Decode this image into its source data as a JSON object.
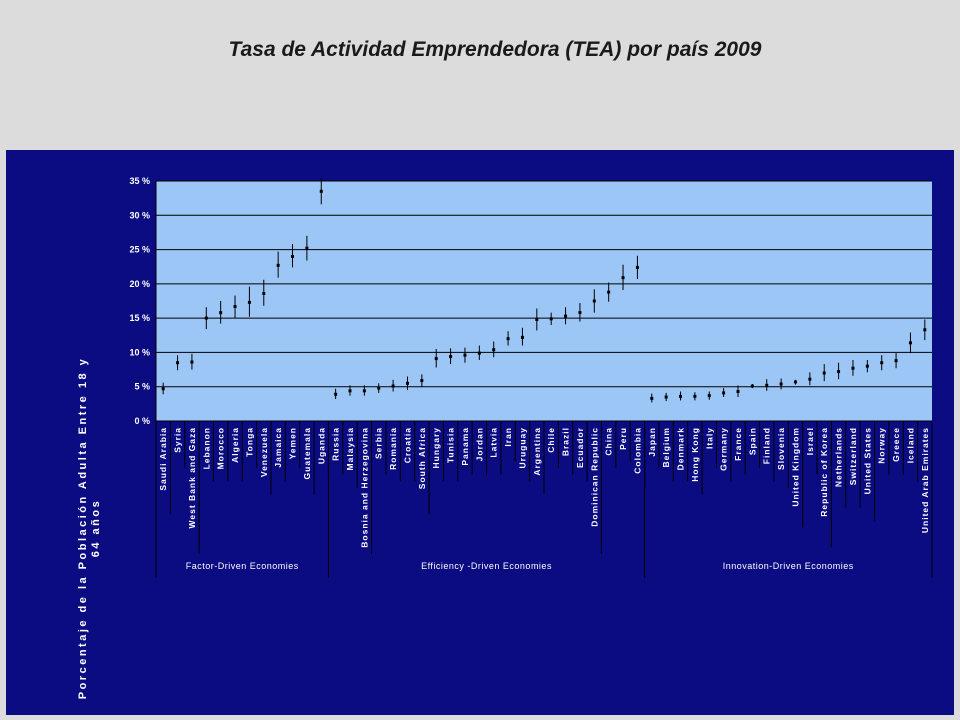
{
  "title": "Tasa de Actividad Emprendedora (TEA) por país 2009",
  "chart_data": {
    "type": "scatter",
    "ylabel": "Porcentaje de la Población Adulta Entre 18 y 64 años",
    "ylim": [
      0,
      35
    ],
    "yticks": [
      "35 %",
      "30 %",
      "25 %",
      "20 %",
      "15 %",
      "10 %",
      "5 %",
      "0 %"
    ],
    "grid": true,
    "colors": {
      "plot_bg": "#9cc6f6",
      "frame_bg": "#0b0b82",
      "gridline": "#000000",
      "marker": "#000000"
    },
    "categories": [
      "Saudi Arabia",
      "Syria",
      "West Bank and Gaza",
      "Lebanon",
      "Morocco",
      "Algeria",
      "Tonga",
      "Venezuela",
      "Jamaica",
      "Yemen",
      "Guatemala",
      "Uganda",
      "Russia",
      "Malaysia",
      "Bosnia and Herzegovina",
      "Serbia",
      "Romania",
      "Croatia",
      "South Africa",
      "Hungary",
      "Tunisia",
      "Panama",
      "Jordan",
      "Latvia",
      "Iran",
      "Uruguay",
      "Argentina",
      "Chile",
      "Brazil",
      "Ecuador",
      "Dominican Republic",
      "China",
      "Peru",
      "Colombia",
      "Japan",
      "Belgium",
      "Denmark",
      "Hong Kong",
      "Italy",
      "Germany",
      "France",
      "Spain",
      "Finland",
      "Slovenia",
      "United Kingdom",
      "Israel",
      "Republic of Korea",
      "Netherlands",
      "Switzerland",
      "United States",
      "Norway",
      "Greece",
      "Iceland",
      "United Arab Emirates"
    ],
    "values": [
      4.7,
      8.5,
      8.6,
      15.0,
      15.8,
      16.7,
      17.3,
      18.6,
      22.7,
      24.0,
      25.2,
      33.5,
      3.9,
      4.4,
      4.4,
      4.8,
      5.1,
      5.5,
      5.9,
      9.1,
      9.4,
      9.6,
      9.9,
      10.4,
      12.0,
      12.2,
      14.8,
      14.9,
      15.3,
      15.8,
      17.5,
      18.8,
      20.9,
      22.4,
      3.3,
      3.5,
      3.6,
      3.6,
      3.7,
      4.1,
      4.3,
      5.1,
      5.2,
      5.4,
      5.7,
      6.1,
      7.0,
      7.2,
      7.7,
      8.0,
      8.5,
      8.8,
      11.4,
      13.3
    ],
    "lows": [
      3.9,
      7.4,
      7.5,
      13.4,
      14.2,
      15.0,
      15.2,
      16.8,
      20.9,
      22.4,
      23.4,
      31.6,
      3.2,
      3.7,
      3.7,
      4.1,
      4.3,
      4.5,
      5.0,
      7.8,
      8.3,
      8.5,
      8.9,
      9.3,
      11.0,
      11.0,
      13.2,
      14.0,
      14.1,
      14.5,
      15.8,
      17.4,
      19.1,
      20.7,
      2.7,
      2.9,
      3.0,
      3.0,
      3.1,
      3.5,
      3.5,
      4.8,
      4.4,
      4.6,
      5.3,
      5.2,
      5.8,
      6.1,
      6.6,
      7.1,
      7.4,
      7.7,
      9.9,
      11.8
    ],
    "highs": [
      5.6,
      9.6,
      9.8,
      16.6,
      17.5,
      18.3,
      19.6,
      20.6,
      24.7,
      25.8,
      27.0,
      35.4,
      4.7,
      5.2,
      5.2,
      5.5,
      6.0,
      6.5,
      6.8,
      10.5,
      10.6,
      10.7,
      11.0,
      11.6,
      13.1,
      13.6,
      16.4,
      15.8,
      16.6,
      17.2,
      19.2,
      20.2,
      22.8,
      24.1,
      4.0,
      4.1,
      4.3,
      4.2,
      4.3,
      4.8,
      5.2,
      5.4,
      6.1,
      6.2,
      6.0,
      7.1,
      8.3,
      8.5,
      8.9,
      8.9,
      9.6,
      9.9,
      12.9,
      14.8
    ],
    "groups": [
      {
        "label": "Factor-Driven Economies",
        "count": 12
      },
      {
        "label": "Efficiency -Driven Economies",
        "count": 22
      },
      {
        "label": "Innovation-Driven Economies",
        "count": 20
      }
    ]
  }
}
